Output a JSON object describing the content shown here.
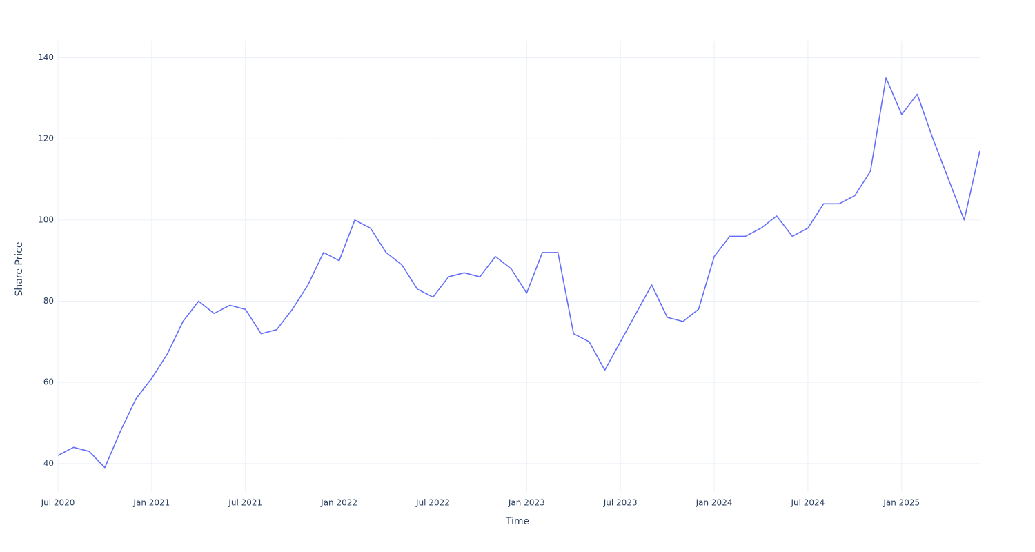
{
  "chart_data": {
    "type": "line",
    "x_label": "Time",
    "y_label": "Share Price",
    "x": [
      "2020-07",
      "2020-08",
      "2020-09",
      "2020-10",
      "2020-11",
      "2020-12",
      "2021-01",
      "2021-02",
      "2021-03",
      "2021-04",
      "2021-05",
      "2021-06",
      "2021-07",
      "2021-08",
      "2021-09",
      "2021-10",
      "2021-11",
      "2021-12",
      "2022-01",
      "2022-02",
      "2022-03",
      "2022-04",
      "2022-05",
      "2022-06",
      "2022-07",
      "2022-08",
      "2022-09",
      "2022-10",
      "2022-11",
      "2022-12",
      "2023-01",
      "2023-02",
      "2023-03",
      "2023-04",
      "2023-05",
      "2023-06",
      "2023-07",
      "2023-08",
      "2023-09",
      "2023-10",
      "2023-11",
      "2023-12",
      "2024-01",
      "2024-02",
      "2024-03",
      "2024-04",
      "2024-05",
      "2024-06",
      "2024-07",
      "2024-08",
      "2024-09",
      "2024-10",
      "2024-11",
      "2024-12",
      "2025-01",
      "2025-02",
      "2025-03",
      "2025-04",
      "2025-05",
      "2025-06"
    ],
    "series": [
      {
        "name": "Share Price",
        "color": "#636efa",
        "values": [
          42,
          44,
          43,
          39,
          48,
          56,
          61,
          67,
          75,
          80,
          77,
          79,
          78,
          72,
          73,
          78,
          84,
          92,
          90,
          100,
          98,
          92,
          89,
          83,
          81,
          86,
          87,
          86,
          91,
          88,
          82,
          92,
          92,
          72,
          70,
          63,
          70,
          77,
          84,
          76,
          75,
          78,
          91,
          96,
          96,
          98,
          101,
          96,
          98,
          104,
          104,
          106,
          112,
          135,
          126,
          131,
          120,
          110,
          100,
          117
        ]
      }
    ],
    "xlim": [
      "2020-07",
      "2025-06"
    ],
    "xticks": [
      {
        "value": "2020-07",
        "label": "Jul 2020"
      },
      {
        "value": "2021-01",
        "label": "Jan 2021"
      },
      {
        "value": "2021-07",
        "label": "Jul 2021"
      },
      {
        "value": "2022-01",
        "label": "Jan 2022"
      },
      {
        "value": "2022-07",
        "label": "Jul 2022"
      },
      {
        "value": "2023-01",
        "label": "Jan 2023"
      },
      {
        "value": "2023-07",
        "label": "Jul 2023"
      },
      {
        "value": "2024-01",
        "label": "Jan 2024"
      },
      {
        "value": "2024-07",
        "label": "Jul 2024"
      },
      {
        "value": "2025-01",
        "label": "Jan 2025"
      }
    ],
    "ylim": [
      33,
      144
    ],
    "yticks": [
      40,
      60,
      80,
      100,
      120,
      140
    ],
    "grid": true
  }
}
